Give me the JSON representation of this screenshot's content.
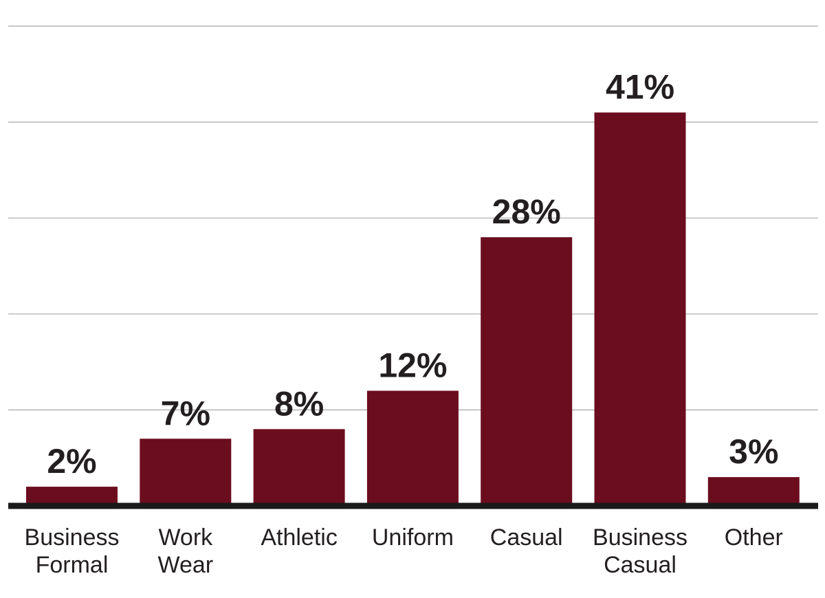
{
  "chart_data": {
    "type": "bar",
    "title": "",
    "xlabel": "",
    "ylabel": "",
    "categories": [
      "Business Formal",
      "Work Wear",
      "Athletic",
      "Uniform",
      "Casual",
      "Business Casual",
      "Other"
    ],
    "category_lines": [
      [
        "Business",
        "Formal"
      ],
      [
        "Work",
        "Wear"
      ],
      [
        "Athletic"
      ],
      [
        "Uniform"
      ],
      [
        "Casual"
      ],
      [
        "Business",
        "Casual"
      ],
      [
        "Other"
      ]
    ],
    "values": [
      2,
      7,
      8,
      12,
      28,
      41,
      3
    ],
    "value_labels": [
      "2%",
      "7%",
      "8%",
      "12%",
      "28%",
      "41%",
      "3%"
    ],
    "ylim": [
      0,
      50
    ],
    "grid": true,
    "legend": "none",
    "bar_color": "#6b0d1f",
    "grid_color": "#a6a6a6",
    "axis_color": "#1a1a1a"
  }
}
